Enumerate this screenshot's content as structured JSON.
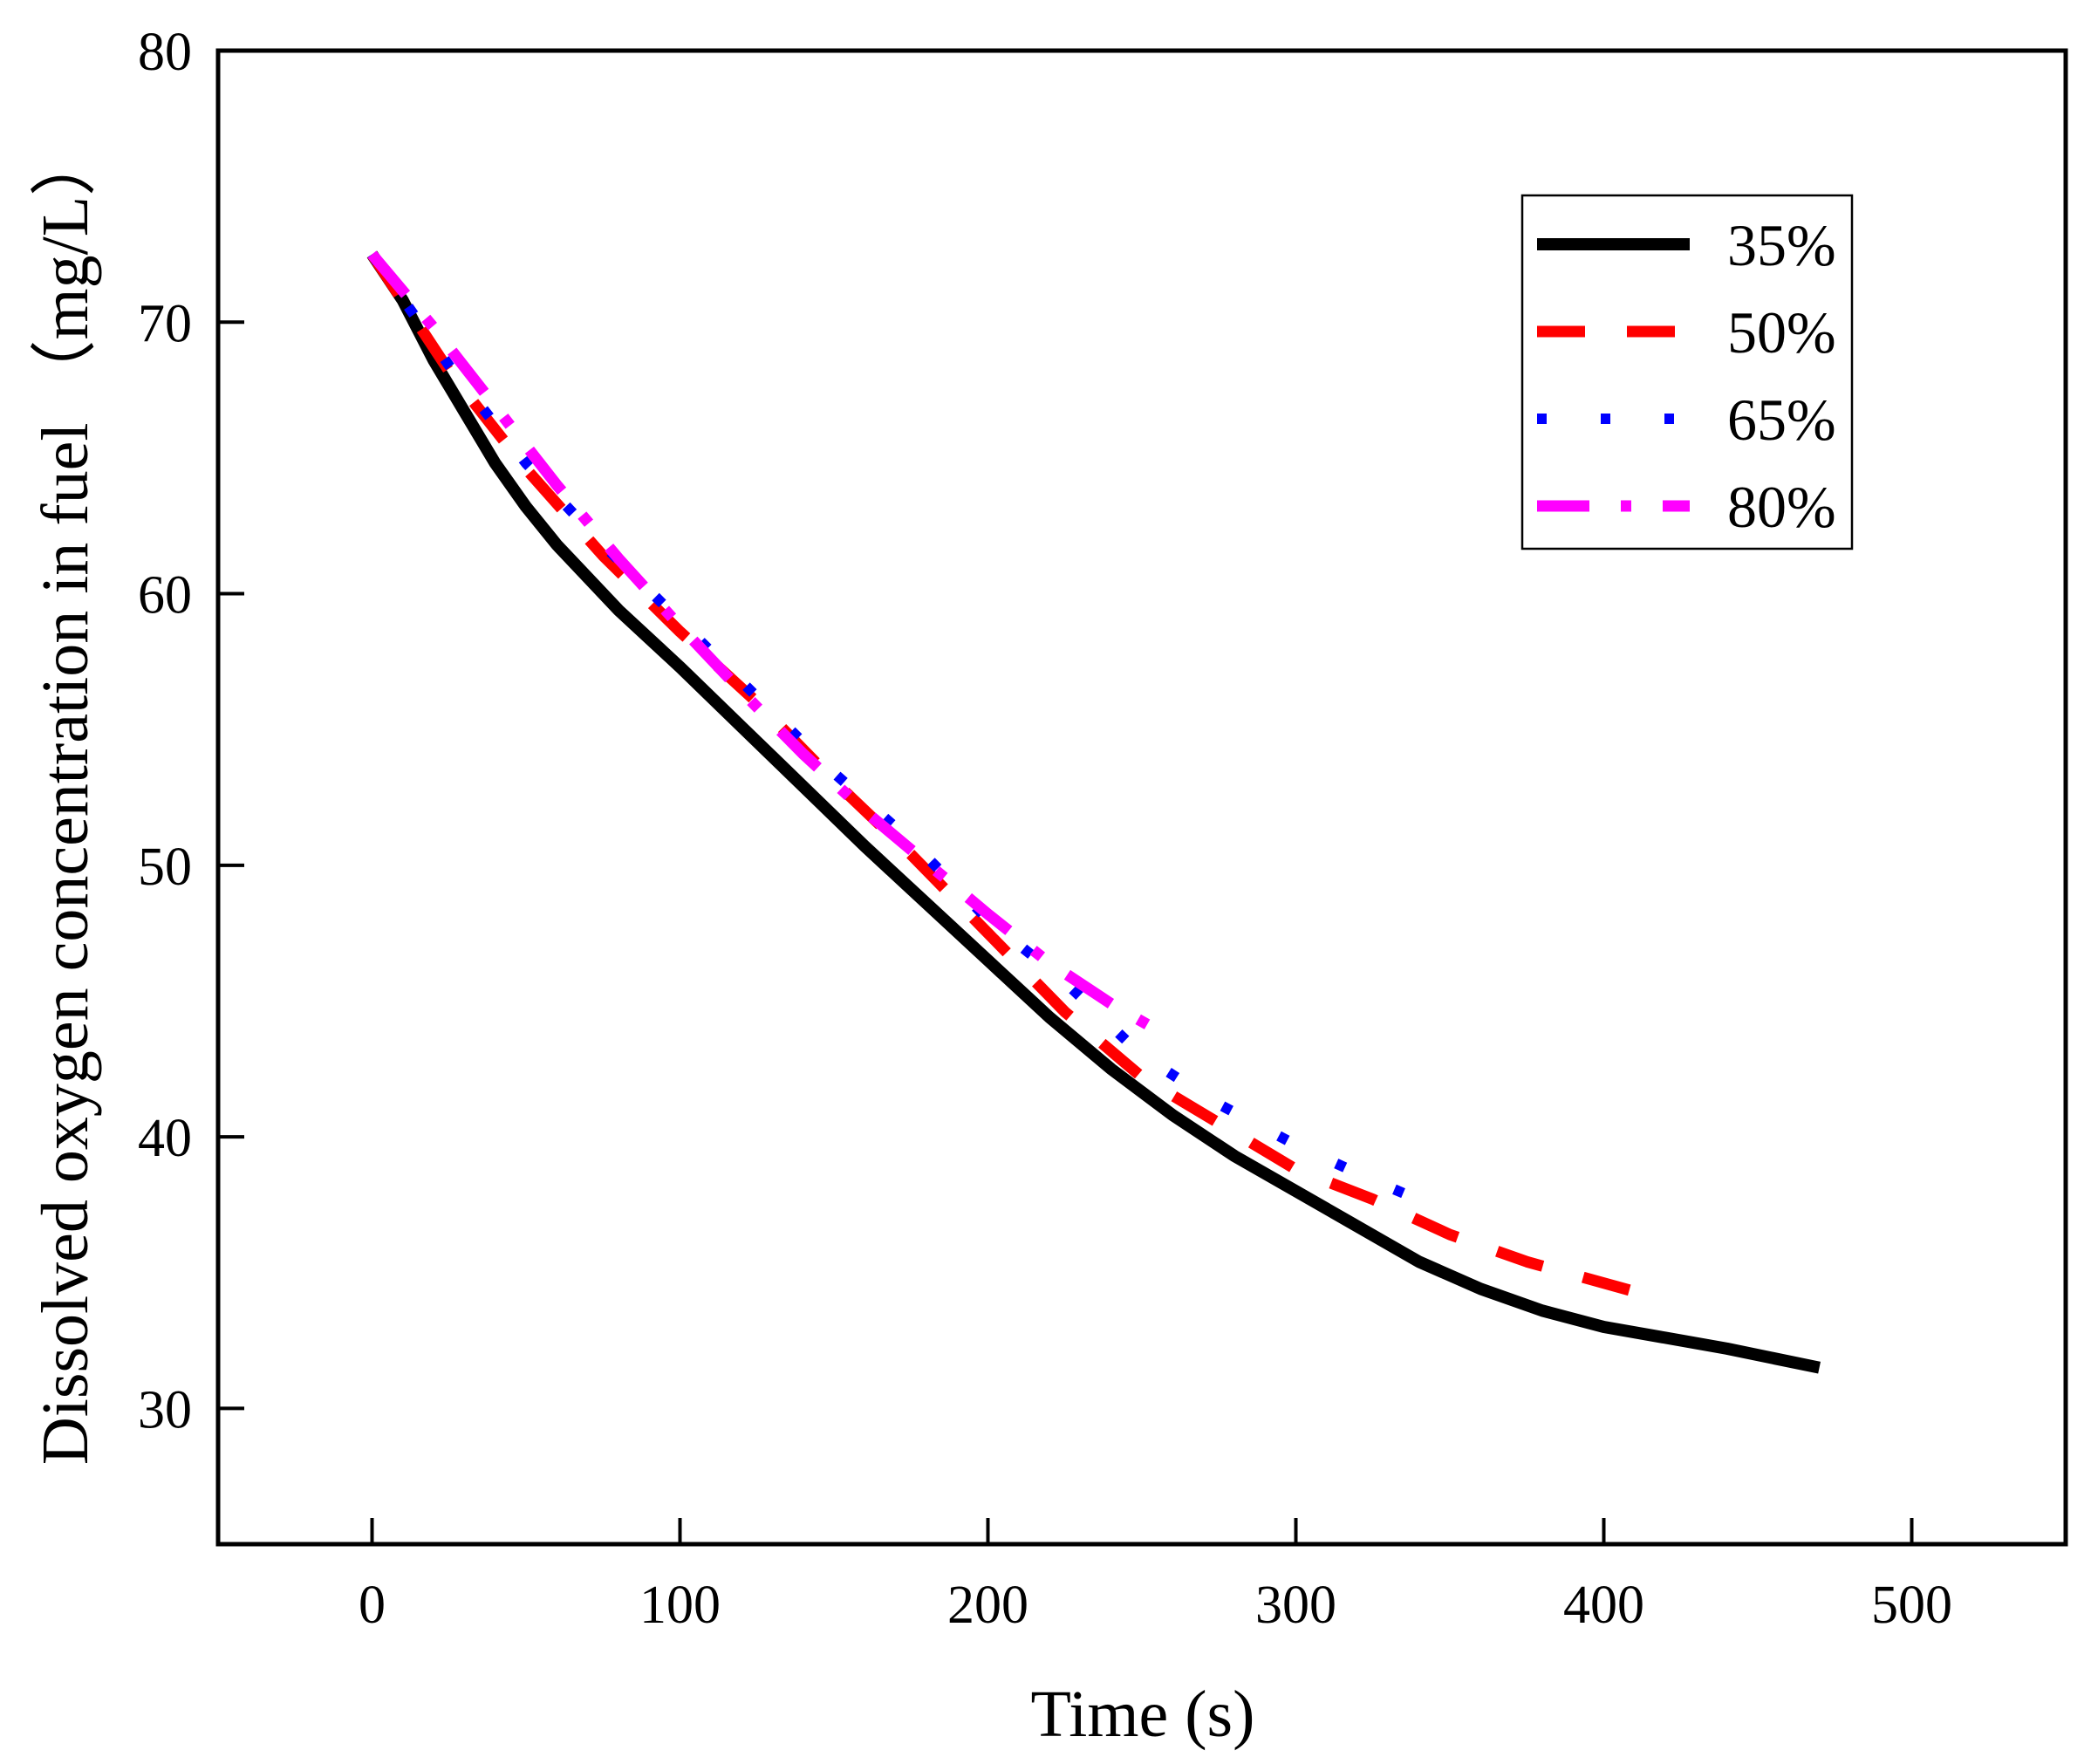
{
  "chart_data": {
    "type": "line",
    "title": "",
    "xlabel": "Time (s)",
    "ylabel": "Dissolved oxygen concentration in fuel （mg/L）",
    "xlim": [
      -50,
      550
    ],
    "ylim": [
      25,
      80
    ],
    "xticks": [
      0,
      100,
      200,
      300,
      400,
      500
    ],
    "yticks": [
      30,
      40,
      50,
      60,
      70,
      80
    ],
    "xtick_labels": [
      "0",
      "100",
      "200",
      "300",
      "400",
      "500"
    ],
    "ytick_labels": [
      "30",
      "40",
      "50",
      "60",
      "70",
      "80"
    ],
    "grid": false,
    "legend_position": "top-right",
    "series": [
      {
        "name": "35%",
        "color": "#000000",
        "style": "solid",
        "x": [
          0,
          10,
          20,
          30,
          40,
          50,
          60,
          80,
          100,
          120,
          140,
          160,
          180,
          200,
          220,
          240,
          260,
          280,
          300,
          320,
          340,
          360,
          380,
          400,
          420,
          440,
          470
        ],
        "y": [
          72.5,
          70.8,
          68.6,
          66.7,
          64.8,
          63.2,
          61.8,
          59.4,
          57.3,
          55.1,
          52.9,
          50.7,
          48.6,
          46.5,
          44.4,
          42.5,
          40.8,
          39.3,
          38.0,
          36.7,
          35.4,
          34.4,
          33.6,
          33.0,
          32.6,
          32.2,
          31.5
        ]
      },
      {
        "name": "50%",
        "color": "#ff0000",
        "style": "dashed",
        "x": [
          0,
          25,
          50,
          75,
          100,
          125,
          150,
          175,
          200,
          225,
          250,
          275,
          300,
          325,
          350,
          375,
          410
        ],
        "y": [
          72.5,
          68.2,
          64.6,
          61.4,
          58.6,
          56.0,
          53.1,
          50.4,
          47.5,
          44.6,
          42.2,
          40.5,
          38.8,
          37.7,
          36.4,
          35.4,
          34.3
        ]
      },
      {
        "name": "65%",
        "color": "#0000ff",
        "style": "dotted",
        "x": [
          0,
          25,
          50,
          75,
          100,
          125,
          150,
          175,
          200,
          225,
          250,
          275,
          300,
          325,
          350
        ],
        "y": [
          72.5,
          68.4,
          64.8,
          61.8,
          59.0,
          56.2,
          53.4,
          50.9,
          48.0,
          45.7,
          43.0,
          41.2,
          39.7,
          38.4,
          37.2
        ]
      },
      {
        "name": "80%",
        "color": "#ff00ff",
        "style": "dash-dot",
        "x": [
          0,
          20,
          40,
          60,
          80,
          100,
          120,
          140,
          160,
          180,
          200,
          220,
          240,
          260
        ],
        "y": [
          72.5,
          69.8,
          66.9,
          64.0,
          61.3,
          58.8,
          56.4,
          54.1,
          52.0,
          50.1,
          48.2,
          46.4,
          44.9,
          43.6
        ]
      }
    ]
  }
}
